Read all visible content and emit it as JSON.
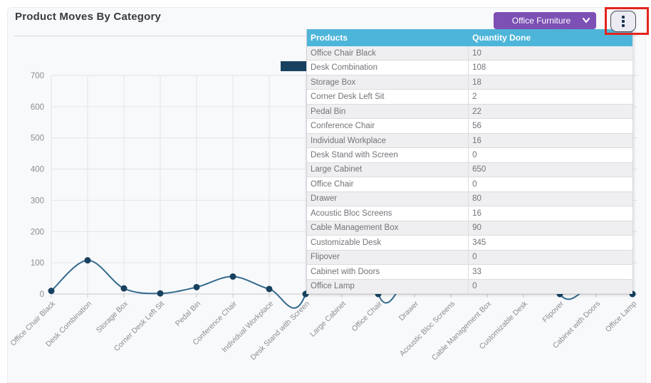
{
  "page": {
    "title": "Product Moves By Category"
  },
  "controls": {
    "category_dropdown": {
      "value": "Office Furniture",
      "icon": "chevron-down"
    },
    "kebab_menu": {
      "icon": "vertical-ellipsis"
    }
  },
  "colors": {
    "dropdown_purple": "#7c50b5",
    "table_header_blue": "#4db5d9",
    "line": "#336a8d",
    "point": "#17415f",
    "annotation_red": "#e3241c",
    "grid": "#e4e4e9",
    "axis": "#c8c8cd",
    "tick_label": "#8c8c92"
  },
  "table": {
    "columns": [
      "Products",
      "Quantity Done"
    ],
    "rows": [
      [
        "Office Chair Black",
        "10"
      ],
      [
        "Desk Combination",
        "108"
      ],
      [
        "Storage Box",
        "18"
      ],
      [
        "Corner Desk Left Sit",
        "2"
      ],
      [
        "Pedal Bin",
        "22"
      ],
      [
        "Conference Chair",
        "56"
      ],
      [
        "Individual Workplace",
        "16"
      ],
      [
        "Desk Stand with Screen",
        "0"
      ],
      [
        "Large Cabinet",
        "650"
      ],
      [
        "Office Chair",
        "0"
      ],
      [
        "Drawer",
        "80"
      ],
      [
        "Acoustic Bloc Screens",
        "16"
      ],
      [
        "Cable Management Box",
        "90"
      ],
      [
        "Customizable Desk",
        "345"
      ],
      [
        "Flipover",
        "0"
      ],
      [
        "Cabinet with Doors",
        "33"
      ],
      [
        "Office Lamp",
        "0"
      ]
    ]
  },
  "chart_data": {
    "type": "line",
    "smooth": true,
    "title": "Product Moves By Category",
    "categories": [
      "Office Chair Black",
      "Desk Combination",
      "Storage Box",
      "Corner Desk Left Sit",
      "Pedal Bin",
      "Conference Chair",
      "Individual Workplace",
      "Desk Stand with Screen",
      "Large Cabinet",
      "Office Chair",
      "Drawer",
      "Acoustic Bloc Screens",
      "Cable Management Box",
      "Customizable Desk",
      "Flipover",
      "Cabinet with Doors",
      "Office Lamp"
    ],
    "series": [
      {
        "name": "Quantity Done",
        "values": [
          10,
          108,
          18,
          2,
          22,
          56,
          16,
          0,
          650,
          0,
          80,
          16,
          90,
          345,
          0,
          33,
          0
        ]
      }
    ],
    "xlabel": "",
    "ylabel": "",
    "ylim": [
      0,
      700
    ],
    "yticks": [
      0,
      100,
      200,
      300,
      400,
      500,
      600,
      700
    ],
    "grid": true,
    "legend_position": "top-center",
    "legend": [
      "Quantity Done"
    ]
  }
}
